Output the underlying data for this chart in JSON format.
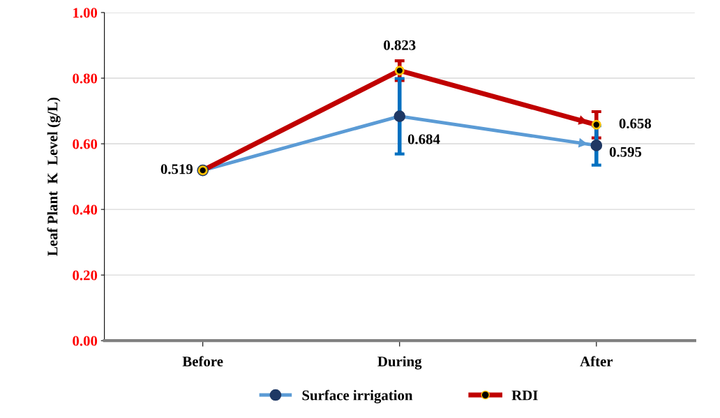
{
  "chart_data": {
    "type": "line",
    "ylabel": "Leaf Plant  K  Level (g/L)",
    "categories": [
      "Before",
      "During",
      "After"
    ],
    "series": [
      {
        "name": "Surface irrigation",
        "color": "#5b9bd5",
        "values": [
          0.519,
          0.684,
          0.595
        ],
        "value_labels": [
          null,
          "0.684",
          "0.595"
        ],
        "errors": [
          null,
          0.115,
          0.06
        ]
      },
      {
        "name": "RDI",
        "color": "#c00000",
        "values": [
          0.519,
          0.823,
          0.658
        ],
        "value_labels": [
          "0.519",
          "0.823",
          "0.658"
        ],
        "errors": [
          null,
          0.03,
          0.04
        ]
      }
    ],
    "ylim": [
      0,
      1
    ],
    "yticks": [
      {
        "value": 0,
        "label": "0.00"
      },
      {
        "value": 0.2,
        "label": "0.20"
      },
      {
        "value": 0.4,
        "label": "0.40"
      },
      {
        "value": 0.6,
        "label": "0.60"
      },
      {
        "value": 0.8,
        "label": "0.80"
      },
      {
        "value": 1,
        "label": "1.00"
      }
    ],
    "grid": "y",
    "legend": "bottom",
    "marker": "circle",
    "line_style": "solid"
  }
}
